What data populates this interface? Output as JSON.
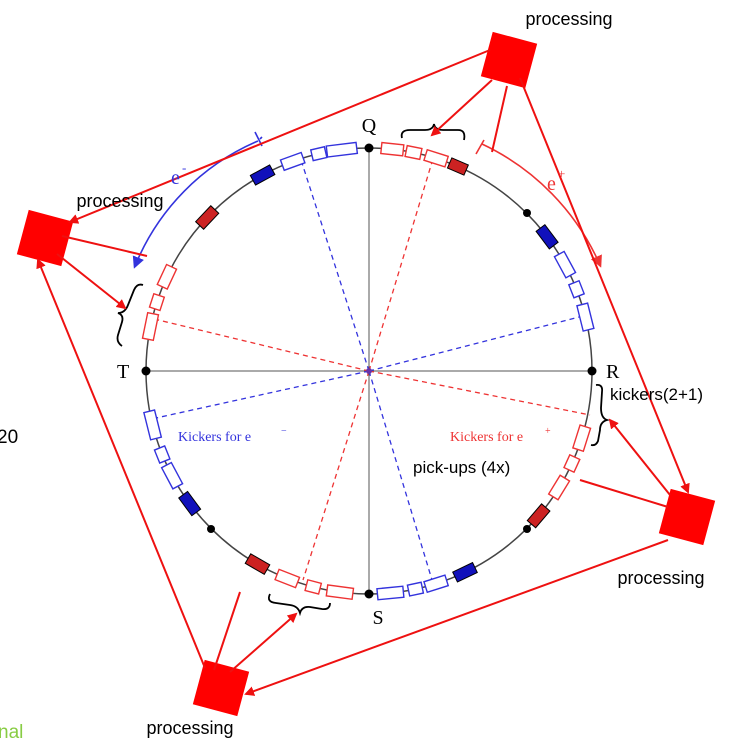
{
  "labels": {
    "processing_top": "processing",
    "processing_left": "processing",
    "processing_right": "processing",
    "processing_bottom": "processing",
    "point_q": "Q",
    "point_r": "R",
    "point_s": "S",
    "point_t": "T",
    "electron_beam": "e",
    "electron_sign": "-",
    "positron_beam": "e",
    "positron_sign": "+",
    "kickers_electron": "Kickers for e",
    "kickers_electron_sign": "−",
    "kickers_positron": "Kickers for e",
    "kickers_positron_sign": "+",
    "kickers_count": "kickers(2+1)",
    "pickups_count": "pick-ups (4x)",
    "left_edge_fragment": "20",
    "bottom_left_fragment": "nal"
  },
  "colors": {
    "processing_red": "#ff0000",
    "electron_blue": "#3333dd",
    "positron_red": "#ee3333",
    "ring_gray": "#555555",
    "fragment_green": "#88cc44"
  }
}
